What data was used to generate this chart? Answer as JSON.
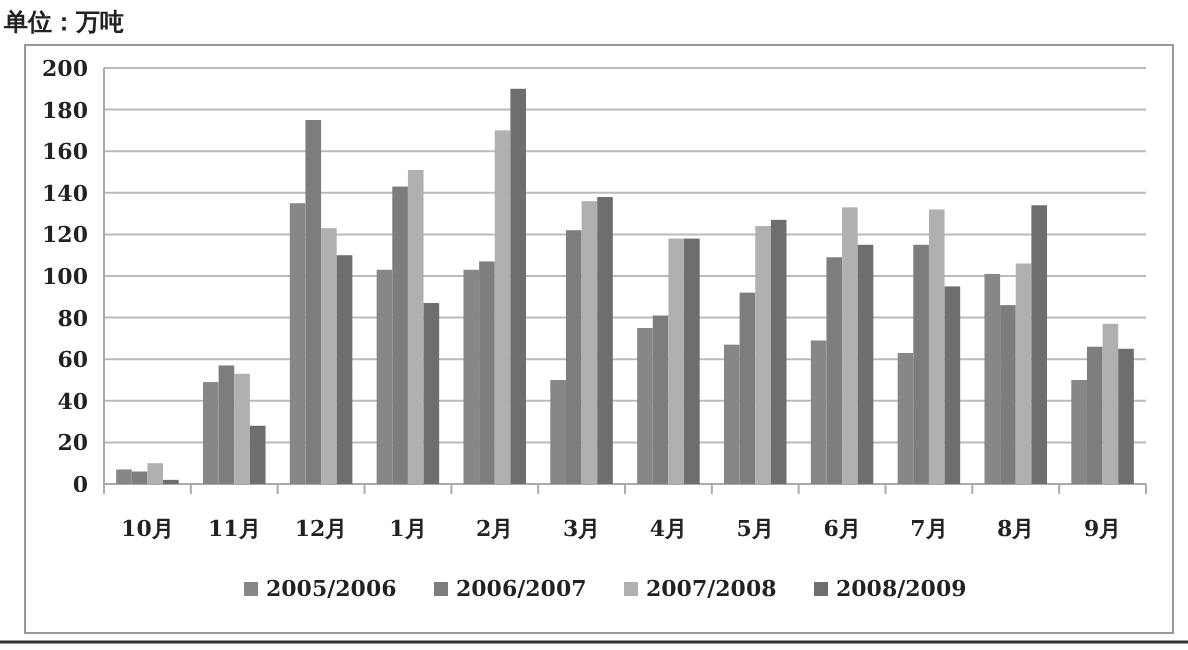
{
  "chart_data": {
    "type": "bar",
    "ylabel": "单位：万吨",
    "categories": [
      "10月",
      "11月",
      "12月",
      "1月",
      "2月",
      "3月",
      "4月",
      "5月",
      "6月",
      "7月",
      "8月",
      "9月"
    ],
    "series": [
      {
        "name": "2005/2006",
        "color": "#878787",
        "values": [
          7,
          49,
          135,
          103,
          103,
          50,
          75,
          67,
          69,
          63,
          101,
          50
        ]
      },
      {
        "name": "2006/2007",
        "color": "#7d7d7d",
        "values": [
          6,
          57,
          175,
          143,
          107,
          122,
          81,
          92,
          109,
          115,
          86,
          66
        ]
      },
      {
        "name": "2007/2008",
        "color": "#b0b0b0",
        "values": [
          10,
          53,
          123,
          151,
          170,
          136,
          118,
          124,
          133,
          132,
          106,
          77
        ]
      },
      {
        "name": "2008/2009",
        "color": "#6e6e6e",
        "values": [
          2,
          28,
          110,
          87,
          190,
          138,
          118,
          127,
          115,
          95,
          134,
          65
        ]
      }
    ],
    "ylim": [
      0,
      200
    ],
    "yticks": [
      0,
      20,
      40,
      60,
      80,
      100,
      120,
      140,
      160,
      180,
      200
    ],
    "grid": "y",
    "legend": "bottom"
  }
}
